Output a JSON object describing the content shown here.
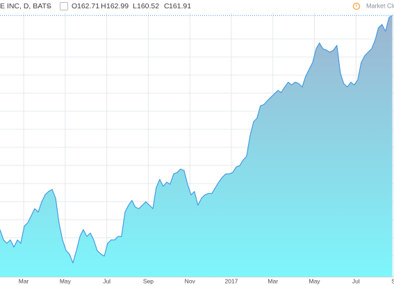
{
  "header": {
    "symbol": "E INC, D, BATS",
    "open_label": "O",
    "open": 162.71,
    "high_label": "H",
    "high": 162.99,
    "low_label": "L",
    "low": 160.52,
    "close_label": "C",
    "close": 161.91,
    "market_status": "Market Clos"
  },
  "chart_data": {
    "type": "area",
    "x": [
      1.86,
      2.03,
      2.19,
      2.36,
      2.53,
      2.7,
      2.86,
      3.03,
      3.2,
      3.37,
      3.53,
      3.7,
      3.87,
      4.03,
      4.2,
      4.37,
      4.54,
      4.7,
      4.87,
      5.04,
      5.2,
      5.37,
      5.54,
      5.71,
      5.87,
      6.04,
      6.21,
      6.37,
      6.54,
      6.71,
      6.88,
      7.04,
      7.21,
      7.38,
      7.54,
      7.71,
      7.88,
      8.05,
      8.21,
      8.38,
      8.55,
      8.72,
      8.88,
      9.05,
      9.22,
      9.38,
      9.55,
      9.72,
      9.89,
      10.05,
      10.22,
      10.39,
      10.55,
      10.72,
      10.89,
      11.06,
      11.22,
      11.39,
      11.56,
      11.72,
      11.89,
      12.06,
      12.23,
      12.39,
      12.56,
      12.73,
      12.9,
      13.06,
      13.23,
      13.4,
      13.56,
      13.73,
      13.9,
      14.07,
      14.23,
      14.4,
      14.57,
      14.73,
      14.9,
      15.07,
      15.24,
      15.4,
      15.57,
      15.74,
      15.9,
      16.07,
      16.24,
      16.41,
      16.57,
      16.74,
      16.91,
      17.08,
      17.24,
      17.41,
      17.58,
      17.74,
      17.91,
      18.08,
      18.25,
      18.41,
      18.58,
      18.75,
      18.91,
      19.08,
      19.25,
      19.42,
      19.58,
      19.75,
      19.92,
      20.08,
      20.25,
      20.42,
      20.59,
      20.75
    ],
    "series": [
      {
        "color": "#3a94e0",
        "values": [
          99.6,
          96.6,
          95.6,
          96.6,
          94.5,
          96.6,
          95.6,
          100.6,
          101.6,
          103.7,
          105.7,
          104.7,
          107.7,
          109.7,
          110.7,
          111.3,
          108.7,
          101.6,
          96.6,
          93.5,
          92.5,
          89.9,
          93.5,
          97.6,
          99.6,
          97.6,
          98.6,
          96.6,
          93.5,
          92.5,
          91.9,
          95.6,
          96.6,
          96.6,
          97.6,
          97.6,
          104.7,
          106.7,
          108.1,
          106.1,
          105.7,
          106.7,
          107.7,
          106.7,
          105.7,
          111.8,
          114.2,
          112.2,
          113.4,
          112.8,
          115.8,
          116.2,
          117.2,
          116.8,
          112.8,
          109.7,
          110.7,
          106.7,
          108.7,
          109.7,
          110.1,
          110.1,
          111.8,
          113.4,
          114.8,
          115.8,
          115.8,
          116.2,
          117.8,
          118.2,
          119.8,
          120.9,
          126.9,
          131.0,
          132.0,
          135.6,
          136.0,
          137.1,
          138.1,
          139.1,
          140.1,
          139.5,
          141.1,
          142.5,
          141.7,
          142.5,
          142.1,
          141.1,
          144.1,
          146.2,
          148.2,
          152.2,
          153.9,
          152.2,
          151.8,
          151.2,
          151.8,
          153.2,
          145.1,
          142.1,
          141.1,
          142.5,
          141.7,
          143.1,
          148.2,
          150.2,
          151.2,
          152.2,
          154.7,
          158.3,
          159.3,
          157.3,
          161.3,
          161.9
        ]
      }
    ],
    "xlim": [
      1.86,
      20.83
    ],
    "ylim": [
      85.9,
      166.4
    ],
    "xticks": [
      {
        "value": 3,
        "label": "Mar"
      },
      {
        "value": 5,
        "label": "May"
      },
      {
        "value": 7,
        "label": "Jul"
      },
      {
        "value": 9,
        "label": "Sep"
      },
      {
        "value": 11,
        "label": "Nov"
      },
      {
        "value": 13,
        "label": "2017"
      },
      {
        "value": 15,
        "label": "Mar"
      },
      {
        "value": 17,
        "label": "May"
      },
      {
        "value": 19,
        "label": "Jul"
      },
      {
        "value": 20.8,
        "label": "S"
      }
    ],
    "grid": true,
    "area_gradient": [
      "#9db4d0",
      "#7ef6fb"
    ]
  }
}
